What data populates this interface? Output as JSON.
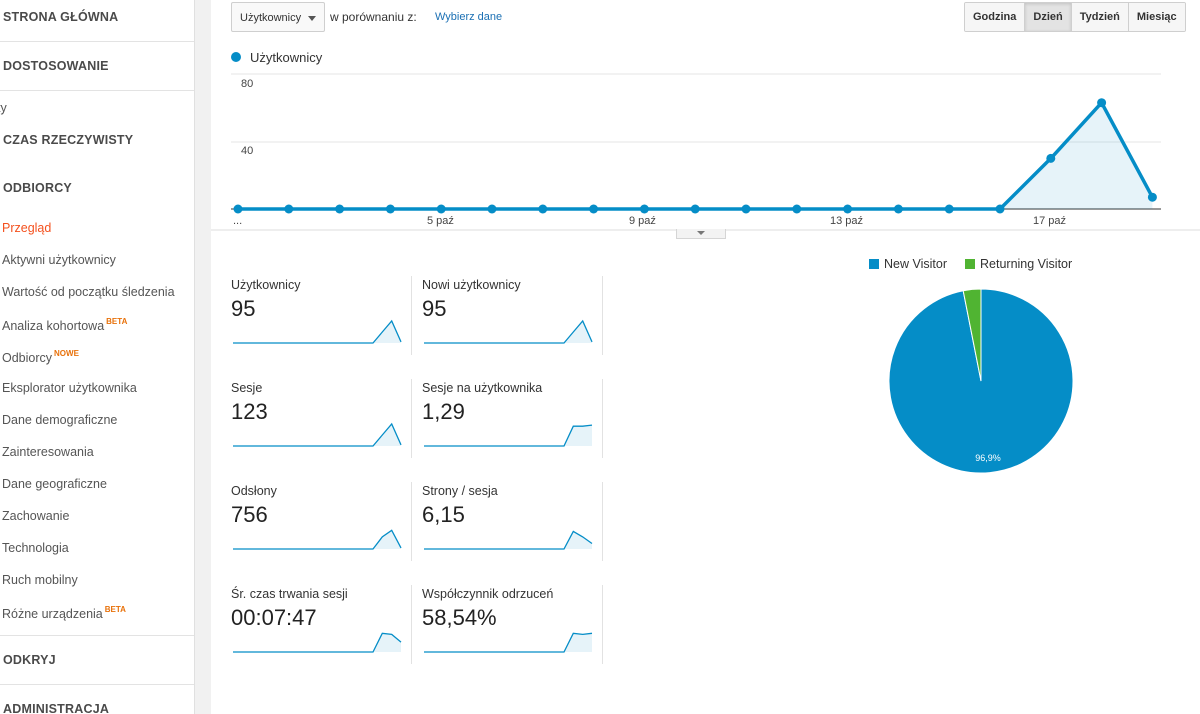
{
  "sidebar": {
    "sections": {
      "home": "STRONA GŁÓWNA",
      "customization": "DOSTOSOWANIE",
      "partial": "ty",
      "realtime": "CZAS RZECZYWISTY",
      "audience": "ODBIORCY",
      "discover": "ODKRYJ",
      "admin": "ADMINISTRACJA"
    },
    "items": [
      {
        "label": "Przegląd",
        "badge": ""
      },
      {
        "label": "Aktywni użytkownicy",
        "badge": ""
      },
      {
        "label": "Wartość od początku śledzenia",
        "badge": ""
      },
      {
        "label": "Analiza kohortowa",
        "badge": "BETA"
      },
      {
        "label": "Odbiorcy",
        "badge": "NOWE"
      },
      {
        "label": "Eksplorator użytkownika",
        "badge": ""
      },
      {
        "label": "Dane demograficzne",
        "badge": ""
      },
      {
        "label": "Zainteresowania",
        "badge": ""
      },
      {
        "label": "Dane geograficzne",
        "badge": ""
      },
      {
        "label": "Zachowanie",
        "badge": ""
      },
      {
        "label": "Technologia",
        "badge": ""
      },
      {
        "label": "Ruch mobilny",
        "badge": ""
      },
      {
        "label": "Różne urządzenia",
        "badge": "BETA"
      }
    ]
  },
  "toolbar": {
    "metric_select": "Użytkownicy",
    "compare_label": "w porównaniu z:",
    "compare_link": "Wybierz dane",
    "periods": [
      "Godzina",
      "Dzień",
      "Tydzień",
      "Miesiąc"
    ],
    "active_period": "Dzień"
  },
  "chart_data": [
    {
      "type": "line",
      "series": [
        {
          "name": "Użytkownicy",
          "values": [
            0,
            0,
            0,
            0,
            0,
            0,
            0,
            0,
            0,
            0,
            0,
            0,
            0,
            0,
            0,
            0,
            30,
            63,
            7
          ]
        }
      ],
      "x_tick_labels": [
        "...",
        "5 paź",
        "9 paź",
        "13 paź",
        "17 paź"
      ],
      "y_tick_labels": [
        "80",
        "40"
      ],
      "ylim": [
        0,
        80
      ],
      "color": "#058dc7",
      "grid": true
    },
    {
      "type": "pie",
      "labels": [
        "New Visitor",
        "Returning Visitor"
      ],
      "values": [
        96.9,
        3.1
      ],
      "colors": [
        "#058dc7",
        "#50b432"
      ],
      "slice_label": "96,9%",
      "legend_position": "top"
    }
  ],
  "metrics": [
    {
      "label": "Użytkownicy",
      "value": "95",
      "spark": [
        0,
        0,
        0,
        0,
        0,
        0,
        0,
        0,
        0,
        0,
        0,
        0,
        0,
        0,
        0,
        0,
        0.5,
        1,
        0.05
      ],
      "fill": false
    },
    {
      "label": "Nowi użytkownicy",
      "value": "95",
      "spark": [
        0,
        0,
        0,
        0,
        0,
        0,
        0,
        0,
        0,
        0,
        0,
        0,
        0,
        0,
        0,
        0,
        0.5,
        1,
        0.05
      ],
      "fill": false
    },
    {
      "label": "Sesje",
      "value": "123",
      "spark": [
        0,
        0,
        0,
        0,
        0,
        0,
        0,
        0,
        0,
        0,
        0,
        0,
        0,
        0,
        0,
        0,
        0.5,
        1,
        0.05
      ],
      "fill": false
    },
    {
      "label": "Sesje na użytkownika",
      "value": "1,29",
      "spark": [
        0,
        0,
        0,
        0,
        0,
        0,
        0,
        0,
        0,
        0,
        0,
        0,
        0,
        0,
        0,
        0,
        0.9,
        0.9,
        0.95
      ],
      "fill": true
    },
    {
      "label": "Odsłony",
      "value": "756",
      "spark": [
        0,
        0,
        0,
        0,
        0,
        0,
        0,
        0,
        0,
        0,
        0,
        0,
        0,
        0,
        0,
        0,
        0.55,
        0.85,
        0.05
      ],
      "fill": true
    },
    {
      "label": "Strony / sesja",
      "value": "6,15",
      "spark": [
        0,
        0,
        0,
        0,
        0,
        0,
        0,
        0,
        0,
        0,
        0,
        0,
        0,
        0,
        0,
        0,
        0.8,
        0.55,
        0.25
      ],
      "fill": true
    },
    {
      "label": "Śr. czas trwania sesji",
      "value": "00:07:47",
      "spark": [
        0,
        0,
        0,
        0,
        0,
        0,
        0,
        0,
        0,
        0,
        0,
        0,
        0,
        0,
        0,
        0,
        0.85,
        0.8,
        0.45
      ],
      "fill": true
    },
    {
      "label": "Współczynnik odrzuceń",
      "value": "58,54%",
      "spark": [
        0,
        0,
        0,
        0,
        0,
        0,
        0,
        0,
        0,
        0,
        0,
        0,
        0,
        0,
        0,
        0,
        0.85,
        0.8,
        0.85
      ],
      "fill": true
    }
  ]
}
